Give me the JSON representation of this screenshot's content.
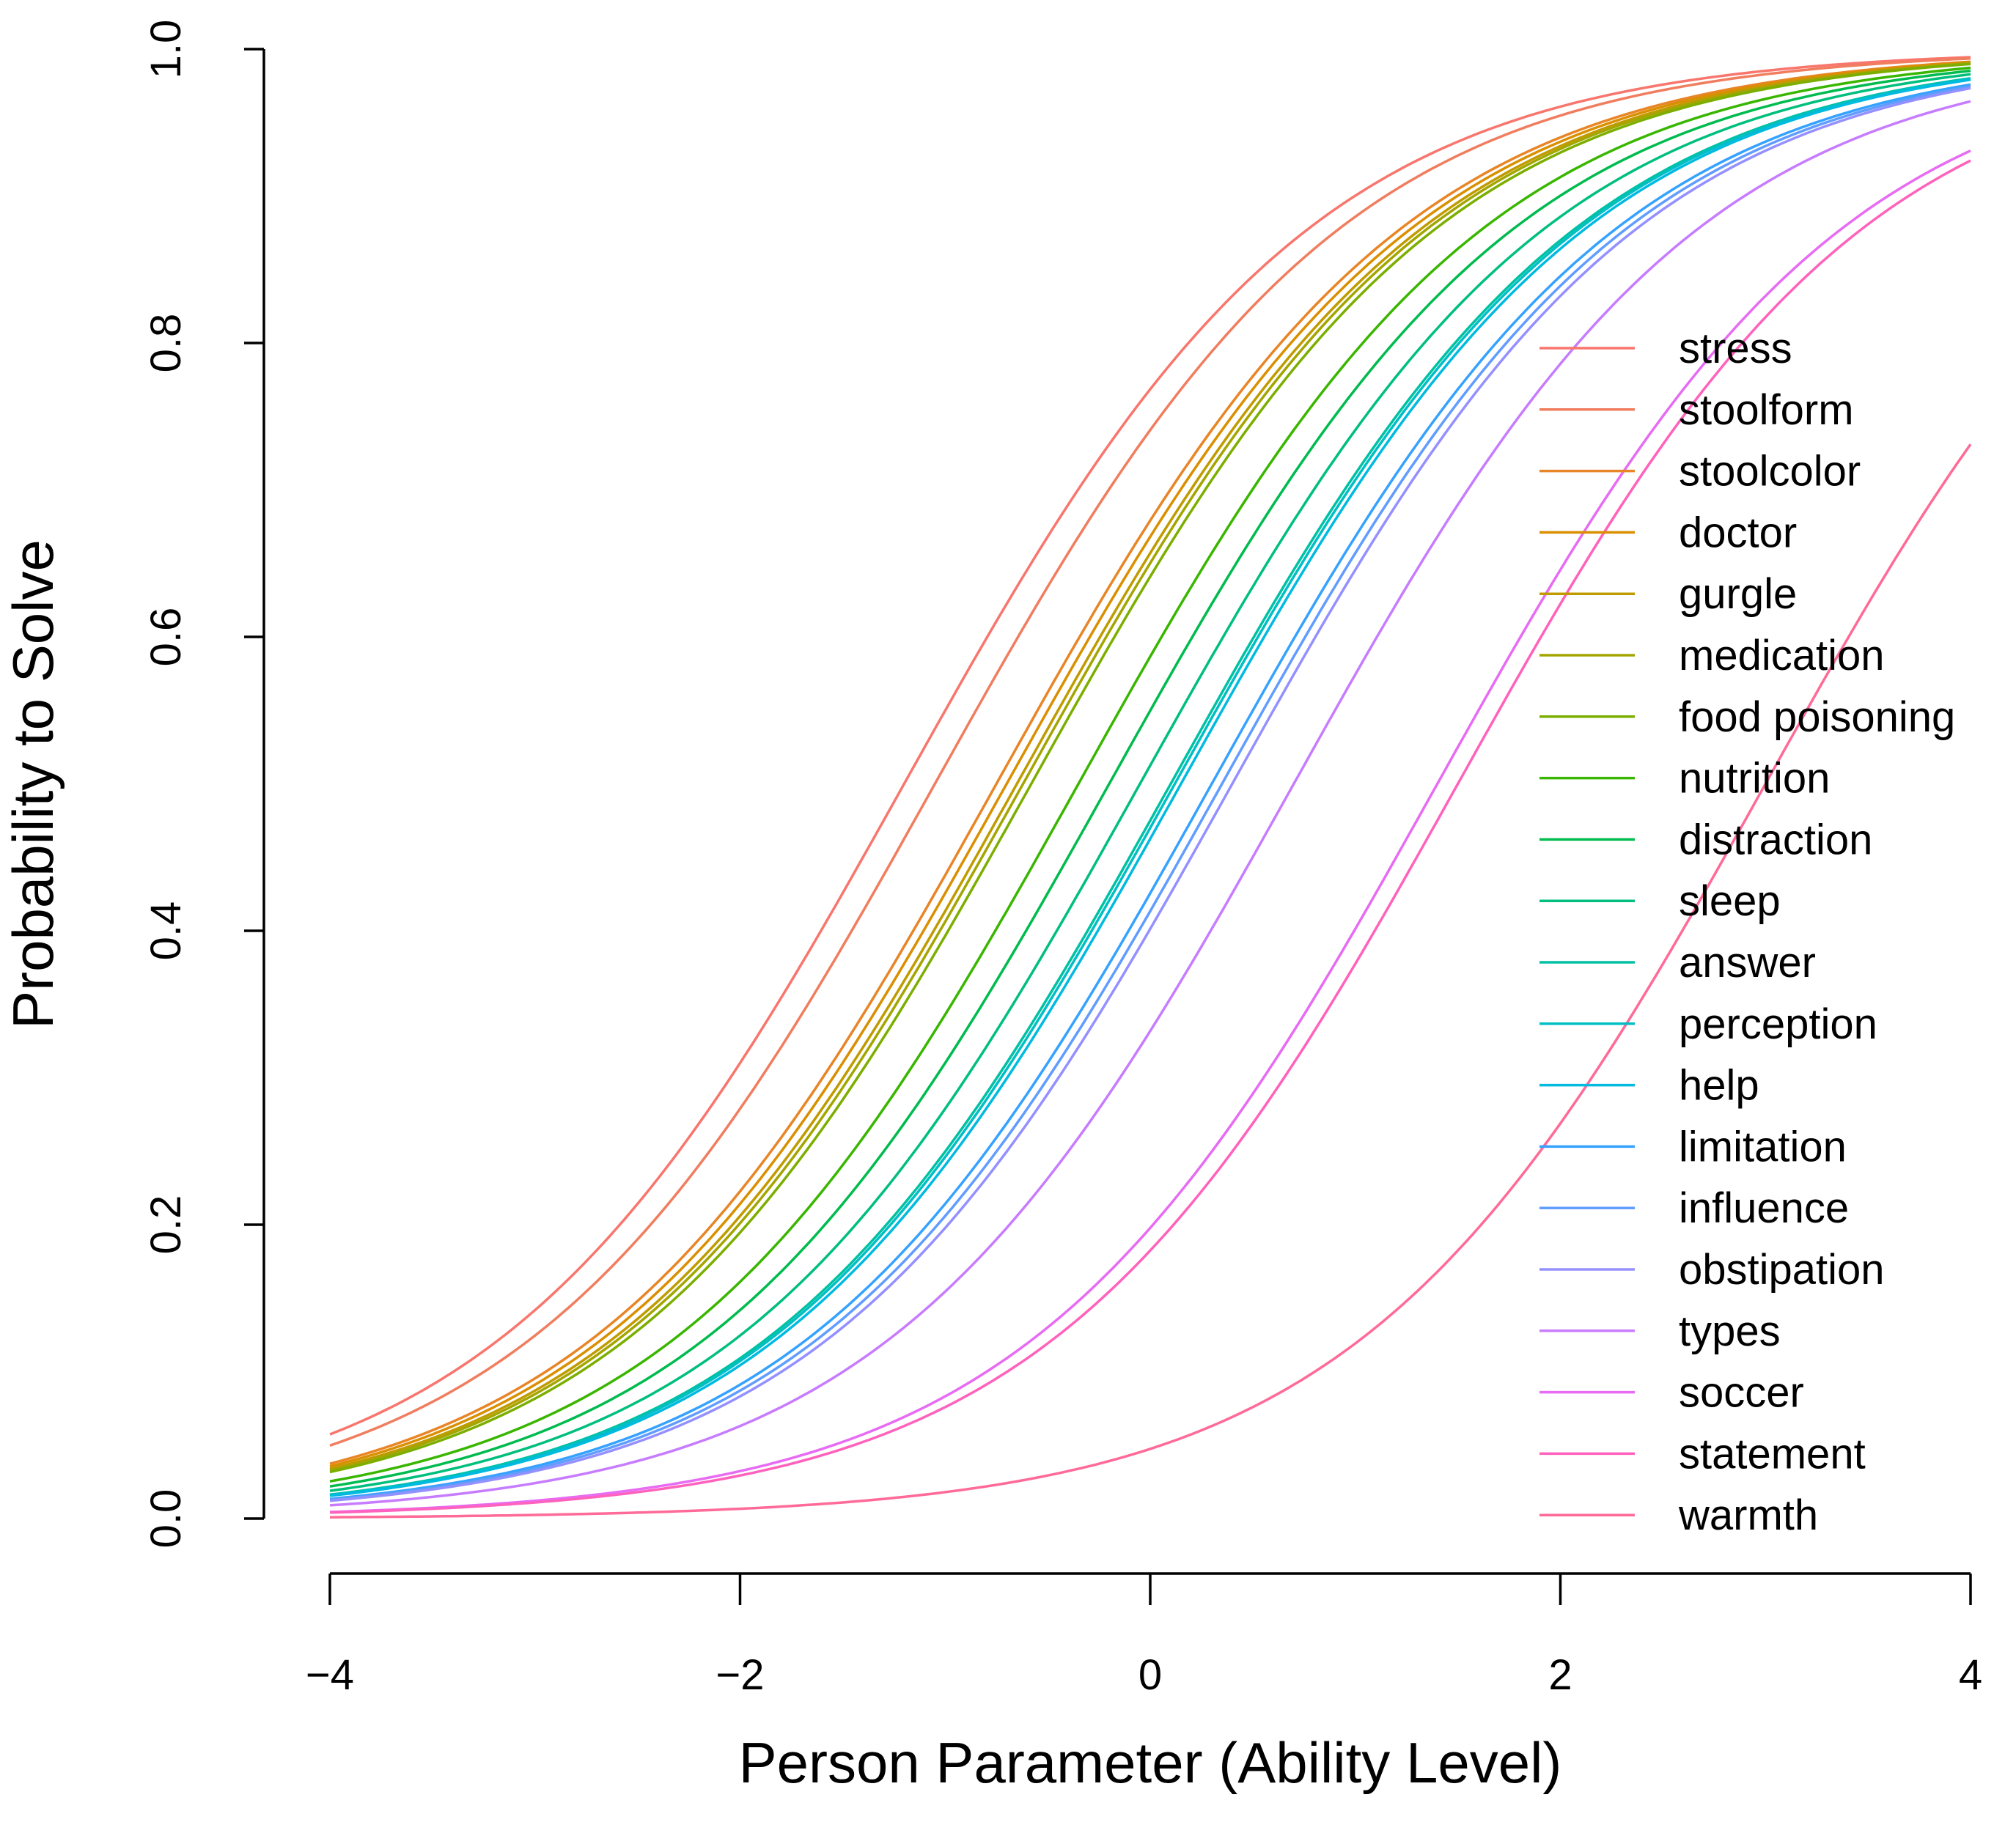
{
  "chart_data": {
    "type": "line",
    "title": "",
    "xlabel": "Person Parameter (Ability Level)",
    "ylabel": "Probability to Solve",
    "xlim": [
      -4,
      4
    ],
    "ylim": [
      0,
      1
    ],
    "x_ticks": [
      {
        "value": -4,
        "label": "−4"
      },
      {
        "value": -2,
        "label": "−2"
      },
      {
        "value": 0,
        "label": "0"
      },
      {
        "value": 2,
        "label": "2"
      },
      {
        "value": 4,
        "label": "4"
      }
    ],
    "y_ticks": [
      {
        "value": 0,
        "label": "0.0"
      },
      {
        "value": 0.2,
        "label": "0.2"
      },
      {
        "value": 0.4,
        "label": "0.4"
      },
      {
        "value": 0.6,
        "label": "0.6"
      },
      {
        "value": 0.8,
        "label": "0.8"
      },
      {
        "value": 1,
        "label": "1.0"
      }
    ],
    "legend_position": "right",
    "curve_model": "Rasch item characteristic curve: P = 1 / (1 + exp(-(theta - difficulty)))",
    "series": [
      {
        "name": "stress",
        "color": "#F8766D",
        "difficulty": -1.2
      },
      {
        "name": "stoolform",
        "color": "#F17D5F",
        "difficulty": -1.05
      },
      {
        "name": "stoolcolor",
        "color": "#E88526",
        "difficulty": -0.75
      },
      {
        "name": "doctor",
        "color": "#DA8F00",
        "difficulty": -0.7
      },
      {
        "name": "gurgle",
        "color": "#C09B00",
        "difficulty": -0.65
      },
      {
        "name": "medication",
        "color": "#A3A500",
        "difficulty": -0.62
      },
      {
        "name": "food poisoning",
        "color": "#7CAE00",
        "difficulty": -0.58
      },
      {
        "name": "nutrition",
        "color": "#39B600",
        "difficulty": -0.35
      },
      {
        "name": "distraction",
        "color": "#00BB4E",
        "difficulty": -0.2
      },
      {
        "name": "sleep",
        "color": "#00BF7D",
        "difficulty": -0.05
      },
      {
        "name": "answer",
        "color": "#00C1A3",
        "difficulty": 0.1
      },
      {
        "name": "perception",
        "color": "#00BFC4",
        "difficulty": 0.12
      },
      {
        "name": "help",
        "color": "#00BAE0",
        "difficulty": 0.15
      },
      {
        "name": "limitation",
        "color": "#35A2FF",
        "difficulty": 0.3
      },
      {
        "name": "influence",
        "color": "#619CFF",
        "difficulty": 0.35
      },
      {
        "name": "obstipation",
        "color": "#9590FF",
        "difficulty": 0.4
      },
      {
        "name": "types",
        "color": "#C77CFF",
        "difficulty": 0.7
      },
      {
        "name": "soccer",
        "color": "#E76BF3",
        "difficulty": 1.4
      },
      {
        "name": "statement",
        "color": "#FF62BC",
        "difficulty": 1.5
      },
      {
        "name": "warmth",
        "color": "#FF6A98",
        "difficulty": 3.0
      }
    ]
  }
}
